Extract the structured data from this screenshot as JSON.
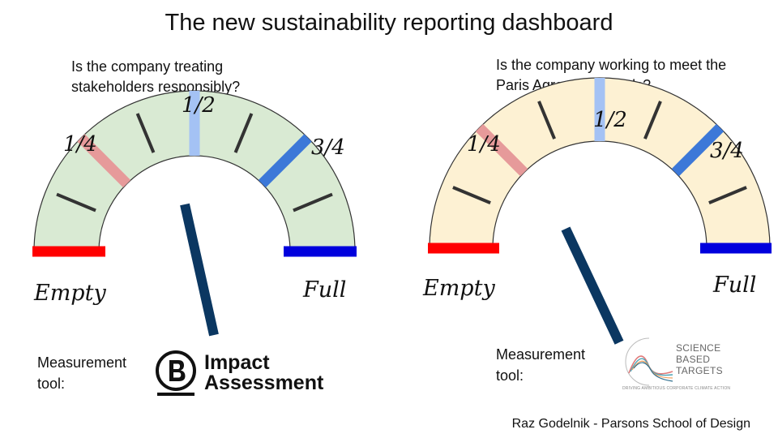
{
  "title": "The new sustainability reporting dashboard",
  "gauges": [
    {
      "question": "Is the company treating stakeholders responsibly?",
      "marks": {
        "quarter": "1/4",
        "half": "1/2",
        "three_quarter": "3/4"
      },
      "empty_label": "Empty",
      "full_label": "Full",
      "fill_color": "#d9ead3",
      "needle_level": 0.43,
      "measurement_label": "Measurement tool:",
      "logo": {
        "name": "b-impact-assessment",
        "line1": "Impact",
        "line2": "Assessment"
      }
    },
    {
      "question": "Is the company working to meet the Paris Agreement goals?",
      "marks": {
        "quarter": "1/4",
        "half": "1/2",
        "three_quarter": "3/4"
      },
      "empty_label": "Empty",
      "full_label": "Full",
      "fill_color": "#fdf1d3",
      "needle_level": 0.36,
      "measurement_label": "Measurement tool:",
      "logo": {
        "name": "science-based-targets",
        "words": [
          "SCIENCE",
          "BASED",
          "TARGETS"
        ],
        "tagline": "DRIVING AMBITIOUS CORPORATE CLIMATE ACTION"
      }
    }
  ],
  "colors": {
    "empty": "#ff0000",
    "full": "#0000dd",
    "quarter": "#e69a9a",
    "half": "#a4c2f4",
    "three_quarter": "#3c78d8",
    "ticks": "#333333",
    "needle": "#0b3761"
  },
  "credit": "Raz Godelnik - Parsons School of Design"
}
